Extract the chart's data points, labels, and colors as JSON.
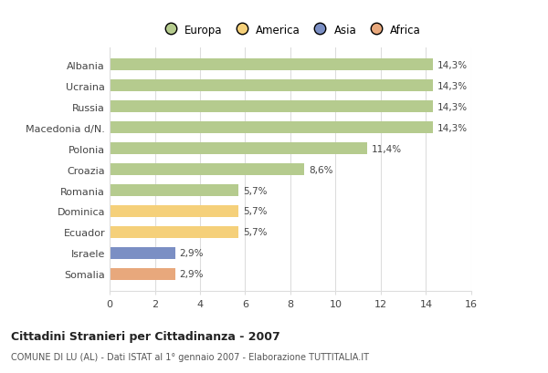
{
  "categories": [
    "Albania",
    "Ucraina",
    "Russia",
    "Macedonia d/N.",
    "Polonia",
    "Croazia",
    "Romania",
    "Dominica",
    "Ecuador",
    "Israele",
    "Somalia"
  ],
  "values": [
    14.3,
    14.3,
    14.3,
    14.3,
    11.4,
    8.6,
    5.7,
    5.7,
    5.7,
    2.9,
    2.9
  ],
  "labels": [
    "14,3%",
    "14,3%",
    "14,3%",
    "14,3%",
    "11,4%",
    "8,6%",
    "5,7%",
    "5,7%",
    "5,7%",
    "2,9%",
    "2,9%"
  ],
  "bar_colors": [
    "#b5cb8e",
    "#b5cb8e",
    "#b5cb8e",
    "#b5cb8e",
    "#b5cb8e",
    "#b5cb8e",
    "#b5cb8e",
    "#f5d07a",
    "#f5d07a",
    "#7b8fc4",
    "#e8a87c"
  ],
  "legend_labels": [
    "Europa",
    "America",
    "Asia",
    "Africa"
  ],
  "legend_colors": [
    "#b5cb8e",
    "#f5d07a",
    "#7b8fc4",
    "#e8a87c"
  ],
  "xlim": [
    0,
    16
  ],
  "xticks": [
    0,
    2,
    4,
    6,
    8,
    10,
    12,
    14,
    16
  ],
  "title": "Cittadini Stranieri per Cittadinanza - 2007",
  "subtitle": "COMUNE DI LU (AL) - Dati ISTAT al 1° gennaio 2007 - Elaborazione TUTTITALIA.IT",
  "bg_color": "#ffffff",
  "grid_color": "#dddddd",
  "bar_height": 0.55
}
